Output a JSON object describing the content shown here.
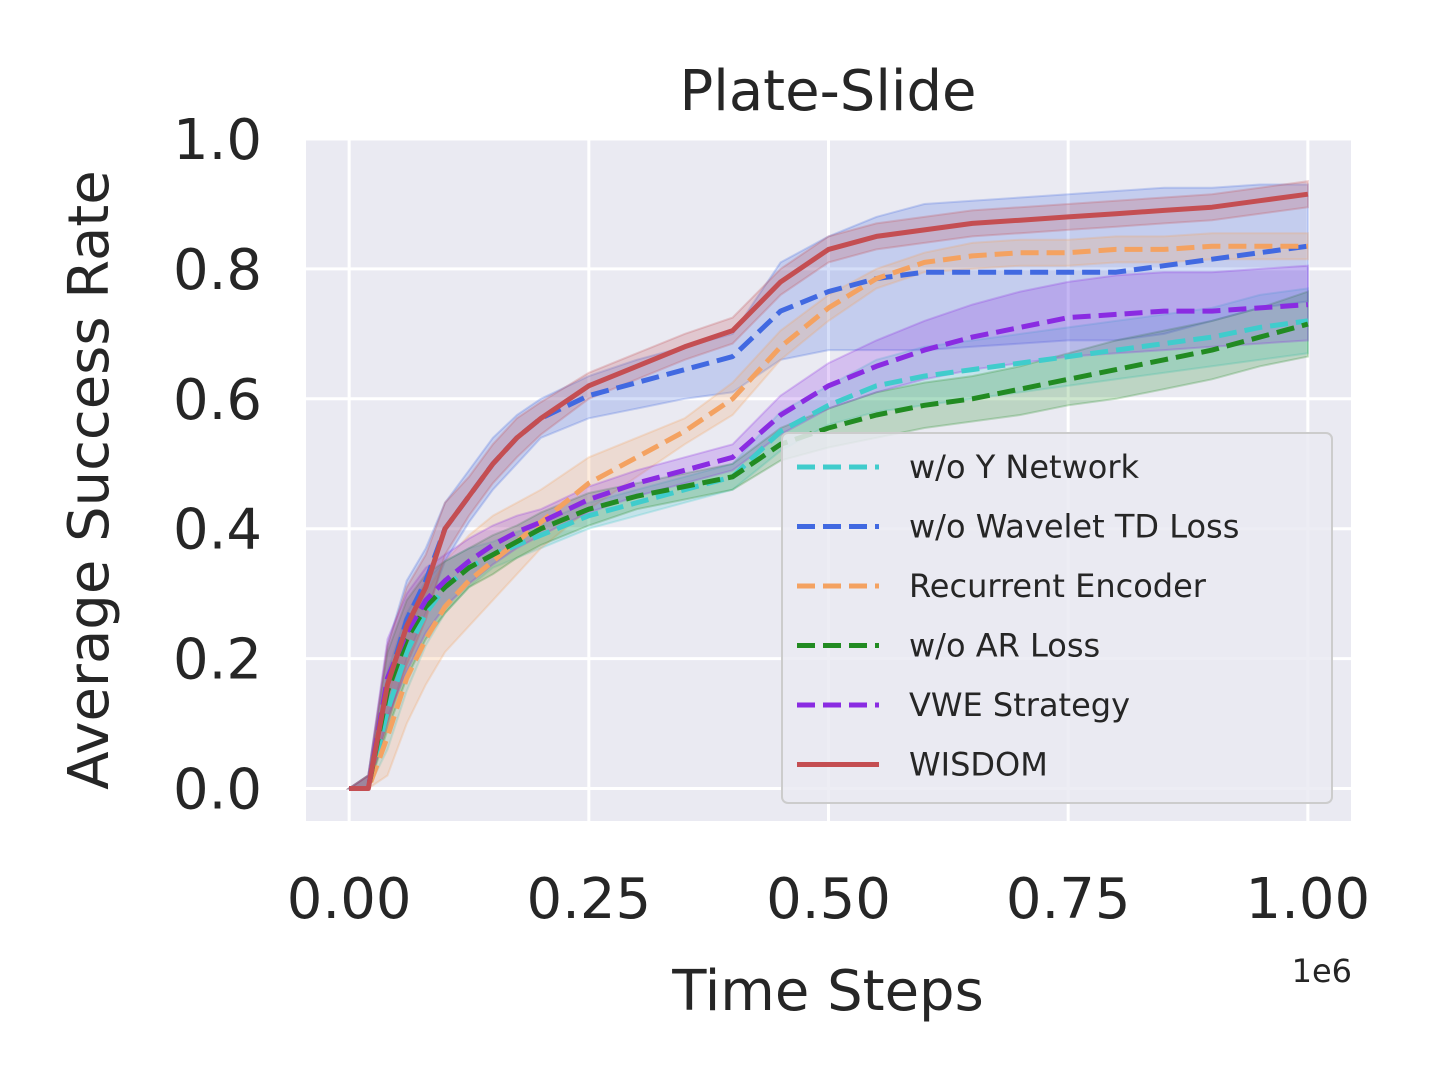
{
  "chart_data": {
    "type": "line",
    "title": "Plate-Slide",
    "xlabel": "Time Steps",
    "ylabel": "Average Success Rate",
    "x_offset_label": "1e6",
    "xlim": [
      -0.045,
      1.045
    ],
    "ylim": [
      -0.05,
      1.0
    ],
    "xticks": [
      0.0,
      0.25,
      0.5,
      0.75,
      1.0
    ],
    "xtick_labels": [
      "0.00",
      "0.25",
      "0.50",
      "0.75",
      "1.00"
    ],
    "yticks": [
      0.0,
      0.2,
      0.4,
      0.6,
      0.8,
      1.0
    ],
    "ytick_labels": [
      "0.0",
      "0.2",
      "0.4",
      "0.6",
      "0.8",
      "1.0"
    ],
    "grid": true,
    "legend_position": "lower-right",
    "x": [
      0.0,
      0.02,
      0.04,
      0.06,
      0.08,
      0.1,
      0.125,
      0.15,
      0.175,
      0.2,
      0.25,
      0.3,
      0.35,
      0.4,
      0.45,
      0.5,
      0.55,
      0.6,
      0.65,
      0.7,
      0.75,
      0.8,
      0.85,
      0.9,
      0.95,
      1.0
    ],
    "series": [
      {
        "name": "w/o Y Network",
        "color": "#40cccc",
        "dash": "dashed",
        "values": [
          0.0,
          0.0,
          0.12,
          0.21,
          0.27,
          0.31,
          0.34,
          0.36,
          0.375,
          0.39,
          0.42,
          0.44,
          0.46,
          0.48,
          0.55,
          0.59,
          0.62,
          0.635,
          0.645,
          0.655,
          0.665,
          0.675,
          0.685,
          0.695,
          0.71,
          0.72
        ],
        "lower": [
          0.0,
          0.0,
          0.06,
          0.15,
          0.22,
          0.27,
          0.31,
          0.34,
          0.355,
          0.37,
          0.4,
          0.42,
          0.44,
          0.46,
          0.52,
          0.56,
          0.58,
          0.59,
          0.6,
          0.61,
          0.62,
          0.63,
          0.64,
          0.65,
          0.66,
          0.67
        ],
        "upper": [
          0.0,
          0.02,
          0.18,
          0.27,
          0.32,
          0.35,
          0.37,
          0.38,
          0.395,
          0.41,
          0.44,
          0.46,
          0.48,
          0.5,
          0.58,
          0.62,
          0.66,
          0.68,
          0.69,
          0.7,
          0.71,
          0.72,
          0.73,
          0.74,
          0.76,
          0.77
        ]
      },
      {
        "name": "w/o Wavelet TD Loss",
        "color": "#4169e1",
        "dash": "dashed",
        "values": [
          0.0,
          0.0,
          0.16,
          0.26,
          0.32,
          0.4,
          0.45,
          0.5,
          0.54,
          0.57,
          0.605,
          0.625,
          0.645,
          0.665,
          0.735,
          0.765,
          0.785,
          0.795,
          0.795,
          0.795,
          0.795,
          0.795,
          0.805,
          0.815,
          0.825,
          0.835
        ],
        "lower": [
          0.0,
          0.0,
          0.1,
          0.2,
          0.27,
          0.35,
          0.41,
          0.46,
          0.5,
          0.54,
          0.57,
          0.585,
          0.6,
          0.61,
          0.66,
          0.675,
          0.675,
          0.675,
          0.68,
          0.685,
          0.69,
          0.69,
          0.7,
          0.72,
          0.74,
          0.75
        ],
        "upper": [
          0.0,
          0.02,
          0.22,
          0.32,
          0.37,
          0.44,
          0.49,
          0.54,
          0.575,
          0.6,
          0.635,
          0.66,
          0.68,
          0.7,
          0.81,
          0.85,
          0.88,
          0.9,
          0.905,
          0.91,
          0.915,
          0.92,
          0.925,
          0.925,
          0.93,
          0.93
        ]
      },
      {
        "name": "Recurrent Encoder",
        "color": "#f4a261",
        "dash": "dashed",
        "values": [
          0.0,
          0.0,
          0.08,
          0.17,
          0.23,
          0.28,
          0.32,
          0.35,
          0.38,
          0.41,
          0.47,
          0.51,
          0.55,
          0.6,
          0.68,
          0.74,
          0.785,
          0.81,
          0.82,
          0.825,
          0.825,
          0.83,
          0.83,
          0.835,
          0.835,
          0.835
        ],
        "lower": [
          0.0,
          0.0,
          0.02,
          0.1,
          0.16,
          0.21,
          0.25,
          0.29,
          0.33,
          0.37,
          0.43,
          0.48,
          0.53,
          0.575,
          0.66,
          0.72,
          0.77,
          0.795,
          0.8,
          0.805,
          0.805,
          0.81,
          0.81,
          0.815,
          0.815,
          0.815
        ],
        "upper": [
          0.0,
          0.02,
          0.14,
          0.24,
          0.3,
          0.35,
          0.39,
          0.42,
          0.44,
          0.46,
          0.51,
          0.54,
          0.57,
          0.625,
          0.705,
          0.76,
          0.8,
          0.825,
          0.84,
          0.845,
          0.845,
          0.85,
          0.85,
          0.855,
          0.855,
          0.855
        ]
      },
      {
        "name": "w/o AR Loss",
        "color": "#228b22",
        "dash": "dashed",
        "values": [
          0.0,
          0.0,
          0.15,
          0.23,
          0.28,
          0.31,
          0.34,
          0.36,
          0.38,
          0.4,
          0.43,
          0.45,
          0.465,
          0.48,
          0.53,
          0.555,
          0.575,
          0.59,
          0.6,
          0.615,
          0.63,
          0.645,
          0.66,
          0.675,
          0.695,
          0.715
        ],
        "lower": [
          0.0,
          0.0,
          0.09,
          0.17,
          0.23,
          0.27,
          0.31,
          0.33,
          0.355,
          0.375,
          0.405,
          0.43,
          0.445,
          0.46,
          0.505,
          0.525,
          0.54,
          0.555,
          0.565,
          0.575,
          0.59,
          0.6,
          0.615,
          0.63,
          0.65,
          0.665
        ],
        "upper": [
          0.0,
          0.02,
          0.21,
          0.29,
          0.33,
          0.35,
          0.37,
          0.39,
          0.405,
          0.425,
          0.455,
          0.47,
          0.485,
          0.5,
          0.555,
          0.585,
          0.61,
          0.625,
          0.635,
          0.65,
          0.67,
          0.69,
          0.705,
          0.72,
          0.74,
          0.765
        ]
      },
      {
        "name": "VWE Strategy",
        "color": "#8a2be2",
        "dash": "dashed",
        "values": [
          0.0,
          0.0,
          0.17,
          0.24,
          0.29,
          0.32,
          0.35,
          0.375,
          0.395,
          0.41,
          0.445,
          0.47,
          0.49,
          0.51,
          0.575,
          0.62,
          0.65,
          0.675,
          0.695,
          0.71,
          0.725,
          0.73,
          0.735,
          0.735,
          0.74,
          0.745
        ],
        "lower": [
          0.0,
          0.0,
          0.11,
          0.18,
          0.24,
          0.28,
          0.315,
          0.345,
          0.37,
          0.39,
          0.425,
          0.45,
          0.47,
          0.49,
          0.545,
          0.585,
          0.61,
          0.63,
          0.645,
          0.655,
          0.665,
          0.67,
          0.675,
          0.68,
          0.685,
          0.69
        ],
        "upper": [
          0.0,
          0.02,
          0.23,
          0.3,
          0.34,
          0.36,
          0.385,
          0.405,
          0.42,
          0.43,
          0.465,
          0.49,
          0.51,
          0.53,
          0.605,
          0.655,
          0.69,
          0.72,
          0.745,
          0.765,
          0.78,
          0.79,
          0.795,
          0.795,
          0.8,
          0.805
        ]
      },
      {
        "name": "WISDOM",
        "color": "#c44e52",
        "dash": "solid",
        "values": [
          0.0,
          0.0,
          0.16,
          0.25,
          0.31,
          0.4,
          0.45,
          0.5,
          0.54,
          0.57,
          0.62,
          0.65,
          0.68,
          0.705,
          0.78,
          0.83,
          0.85,
          0.86,
          0.87,
          0.875,
          0.88,
          0.885,
          0.89,
          0.895,
          0.905,
          0.915
        ],
        "lower": [
          0.0,
          0.0,
          0.1,
          0.19,
          0.26,
          0.36,
          0.42,
          0.47,
          0.51,
          0.545,
          0.6,
          0.63,
          0.66,
          0.685,
          0.76,
          0.81,
          0.83,
          0.84,
          0.85,
          0.855,
          0.86,
          0.865,
          0.87,
          0.875,
          0.885,
          0.895
        ],
        "upper": [
          0.0,
          0.02,
          0.22,
          0.31,
          0.36,
          0.44,
          0.48,
          0.53,
          0.57,
          0.595,
          0.64,
          0.67,
          0.7,
          0.725,
          0.8,
          0.85,
          0.87,
          0.88,
          0.89,
          0.895,
          0.9,
          0.905,
          0.91,
          0.915,
          0.925,
          0.935
        ]
      }
    ]
  }
}
